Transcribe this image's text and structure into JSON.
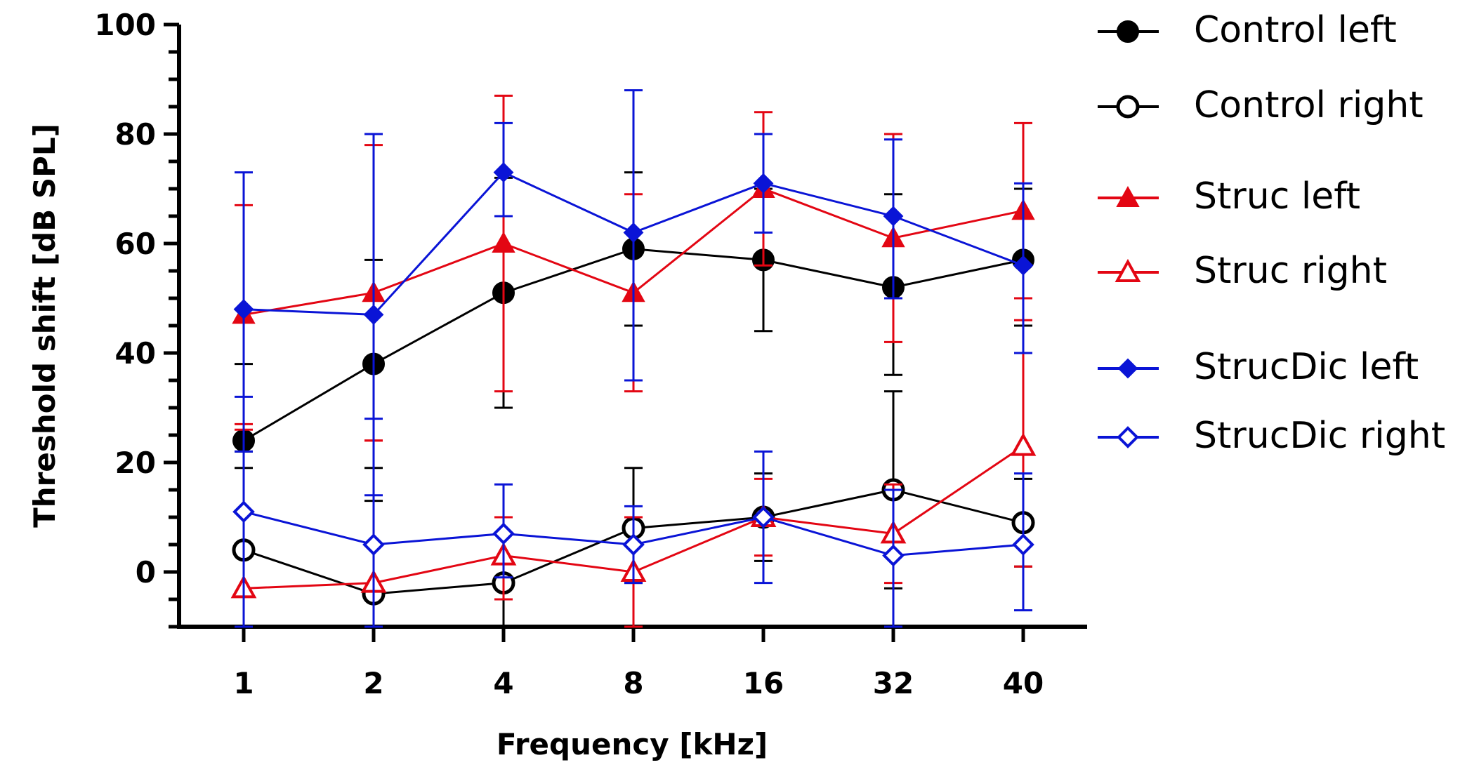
{
  "chart_data": {
    "type": "line",
    "title": "",
    "xlabel": "Frequency [kHz]",
    "ylabel": "Threshold shift [dB SPL]",
    "categories": [
      "1",
      "2",
      "4",
      "8",
      "16",
      "32",
      "40"
    ],
    "ylim": [
      -10,
      100
    ],
    "yticks": [
      0,
      20,
      40,
      60,
      80,
      100
    ],
    "grid": false,
    "legend_position": "right",
    "series": [
      {
        "name": "Control left",
        "color": "#000000",
        "marker": "circle",
        "filled": true,
        "values": [
          24,
          38,
          51,
          59,
          57,
          52,
          57
        ],
        "err_upper": [
          38,
          57,
          72,
          73,
          70,
          69,
          70
        ],
        "err_lower": [
          22,
          19,
          30,
          45,
          44,
          36,
          45
        ]
      },
      {
        "name": "Control right",
        "color": "#000000",
        "marker": "circle",
        "filled": false,
        "values": [
          4,
          -4,
          -2,
          8,
          10,
          15,
          9
        ],
        "err_upper": [
          19,
          13,
          7,
          19,
          18,
          33,
          17
        ],
        "err_lower": [
          -10,
          -10,
          -10,
          -2,
          2,
          -3,
          1
        ]
      },
      {
        "name": "Struc left",
        "color": "#e30613",
        "marker": "triangle",
        "filled": true,
        "values": [
          47,
          51,
          60,
          51,
          70,
          61,
          66
        ],
        "err_upper": [
          67,
          78,
          87,
          69,
          84,
          80,
          82
        ],
        "err_lower": [
          27,
          24,
          33,
          33,
          56,
          42,
          50
        ]
      },
      {
        "name": "Struc right",
        "color": "#e30613",
        "marker": "triangle",
        "filled": false,
        "values": [
          -3,
          -2,
          3,
          0,
          10,
          7,
          23
        ],
        "err_upper": [
          26,
          24,
          10,
          10,
          17,
          16,
          46
        ],
        "err_lower": [
          -10,
          -10,
          -5,
          -10,
          3,
          -2,
          1
        ]
      },
      {
        "name": "StrucDic left",
        "color": "#0a14d6",
        "marker": "diamond",
        "filled": true,
        "values": [
          48,
          47,
          73,
          62,
          71,
          65,
          56
        ],
        "err_upper": [
          73,
          80,
          82,
          88,
          80,
          79,
          71
        ],
        "err_lower": [
          22,
          14,
          65,
          35,
          62,
          50,
          40
        ]
      },
      {
        "name": "StrucDic right",
        "color": "#0a14d6",
        "marker": "diamond",
        "filled": false,
        "values": [
          11,
          5,
          7,
          5,
          10,
          3,
          5
        ],
        "err_upper": [
          32,
          28,
          16,
          12,
          22,
          15,
          18
        ],
        "err_lower": [
          -10,
          -10,
          -1,
          -2,
          -2,
          -10,
          -7
        ]
      }
    ]
  }
}
